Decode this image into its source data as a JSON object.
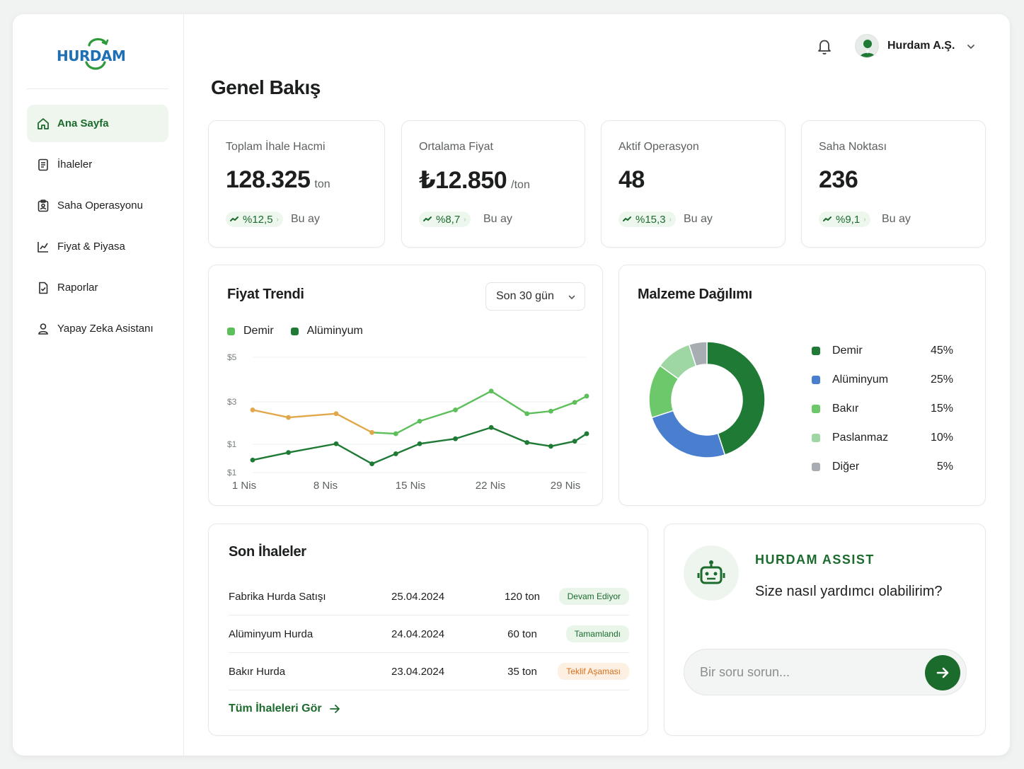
{
  "brand": {
    "logo_text": "HURDAM"
  },
  "sidebar": {
    "items": [
      {
        "label": "Ana Sayfa",
        "icon": "home-icon",
        "active": true
      },
      {
        "label": "İhaleler",
        "icon": "document-list-icon",
        "active": false
      },
      {
        "label": "Saha Operasyonu",
        "icon": "clipboard-user-icon",
        "active": false
      },
      {
        "label": "Fiyat & Piyasa",
        "icon": "line-chart-icon",
        "active": false
      },
      {
        "label": "Raporlar",
        "icon": "report-icon",
        "active": false
      },
      {
        "label": "Yapay Zeka Asistanı",
        "icon": "user-icon",
        "active": false
      }
    ]
  },
  "header": {
    "user_name": "Hurdam A.Ş.",
    "icons": [
      "bell-icon",
      "avatar",
      "chevron-down-icon"
    ]
  },
  "page_title": "Genel Bakış",
  "stats": [
    {
      "label": "Toplam İhale Hacmi",
      "value": "128.325",
      "unit": "ton",
      "trend": "%12,5",
      "period": "Bu ay"
    },
    {
      "label": "Ortalama Fiyat",
      "value": "₺12.850",
      "unit": "/ton",
      "trend": "%8,7",
      "period": "Bu ay"
    },
    {
      "label": "Aktif Operasyon",
      "value": "48",
      "unit": "",
      "trend": "%15,3",
      "period": "Bu ay"
    },
    {
      "label": "Saha Noktası",
      "value": "236",
      "unit": "",
      "trend": "%9,1",
      "period": "Bu ay"
    }
  ],
  "price_trend": {
    "title": "Fiyat Trendi",
    "range_select": "Son 30 gün",
    "legend": [
      {
        "name": "Demir",
        "color": "#5cbf5a"
      },
      {
        "name": "Alüminyum",
        "color": "#1e7a34"
      }
    ]
  },
  "material_distribution": {
    "title": "Malzeme Dağılımı",
    "items": [
      {
        "name": "Demir",
        "percent": "45%",
        "color": "#1e7a34"
      },
      {
        "name": "Alüminyum",
        "percent": "25%",
        "color": "#4a7fd0"
      },
      {
        "name": "Bakır",
        "percent": "15%",
        "color": "#6cc86a"
      },
      {
        "name": "Paslanmaz",
        "percent": "10%",
        "color": "#9fd7a4"
      },
      {
        "name": "Diğer",
        "percent": "5%",
        "color": "#a7adb2"
      }
    ]
  },
  "chart_data": [
    {
      "type": "line",
      "title": "Fiyat Trendi",
      "xlabel": "",
      "ylabel": "",
      "y_tick_labels": [
        "$5",
        "$3",
        "$1",
        "$1"
      ],
      "x_tick_labels": [
        "1 Nis",
        "8 Nis",
        "15 Nis",
        "22 Nis",
        "29 Nis"
      ],
      "x": [
        1,
        4,
        8,
        11,
        13,
        15,
        18,
        21,
        24,
        26,
        28,
        29
      ],
      "ylim": [
        0.4,
        5
      ],
      "series": [
        {
          "name": "Demir",
          "color": "#5cbf5a",
          "values": [
            2.9,
            2.6,
            2.75,
            2.0,
            1.95,
            2.45,
            2.9,
            3.65,
            2.75,
            2.85,
            3.2,
            3.45
          ]
        },
        {
          "name": "Alüminyum",
          "color": "#1e7a34",
          "values": [
            0.9,
            1.2,
            1.55,
            0.75,
            1.15,
            1.55,
            1.75,
            2.2,
            1.6,
            1.45,
            1.65,
            1.95
          ]
        }
      ],
      "grid": true,
      "legend": "top-left"
    },
    {
      "type": "pie",
      "title": "Malzeme Dağılımı",
      "categories": [
        "Demir",
        "Alüminyum",
        "Bakır",
        "Paslanmaz",
        "Diğer"
      ],
      "values": [
        45,
        25,
        15,
        10,
        5
      ],
      "legend": "right"
    }
  ],
  "recent_tenders": {
    "title": "Son İhaleler",
    "rows": [
      {
        "name": "Fabrika Hurda Satışı",
        "date": "25.04.2024",
        "amount": "120 ton",
        "status": "Devam Ediyor",
        "status_color": "#1b6b2d",
        "status_bg": "#eaf5ea"
      },
      {
        "name": "Alüminyum Hurda",
        "date": "24.04.2024",
        "amount": "60 ton",
        "status": "Tamamlandı",
        "status_color": "#1b6b2d",
        "status_bg": "#eaf5ea"
      },
      {
        "name": "Bakır Hurda",
        "date": "23.04.2024",
        "amount": "35 ton",
        "status": "Teklif Aşaması",
        "status_color": "#d9701c",
        "status_bg": "#fdf0e2"
      }
    ],
    "view_all": "Tüm İhaleleri Gör"
  },
  "assistant": {
    "title": "HURDAM ASSIST",
    "subtitle": "Size nasıl yardımcı olabilirim?",
    "input_placeholder": "Bir soru sorun...",
    "icon": "robot-icon",
    "send_icon": "arrow-right-icon"
  }
}
